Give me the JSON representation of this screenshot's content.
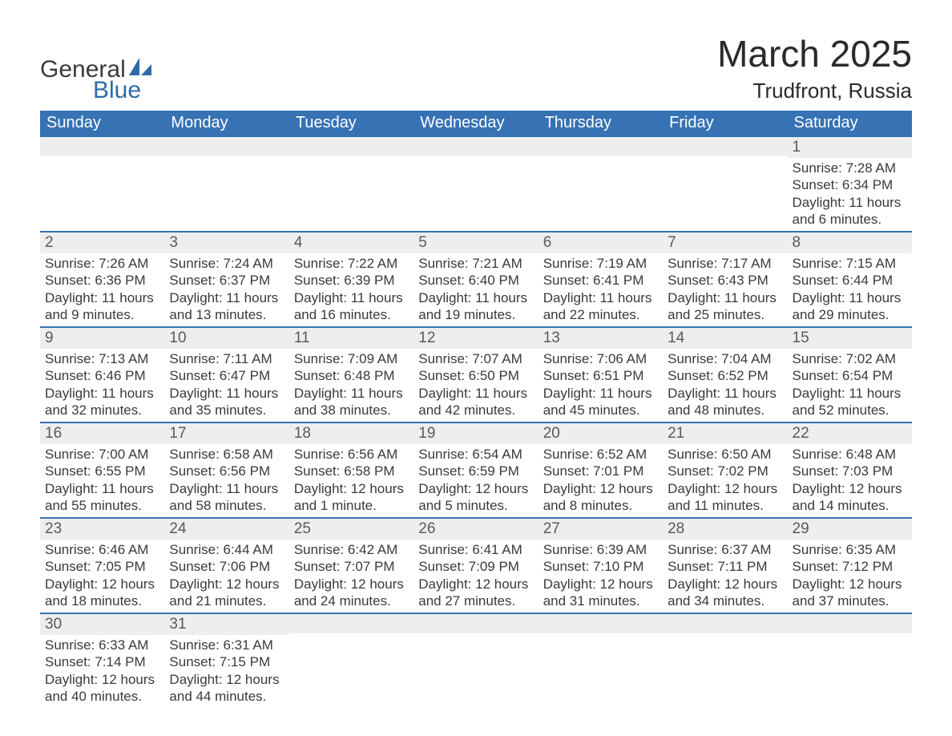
{
  "logo": {
    "general": "General",
    "blue": "Blue",
    "icon_color": "#2f6aa8"
  },
  "title": "March 2025",
  "location": "Trudfront, Russia",
  "colors": {
    "header_bg": "#3672b4",
    "header_text": "#ffffff",
    "daynum_bg": "#eeeeee",
    "daynum_text": "#5a5a5a",
    "body_text": "#3a3a3a",
    "row_border": "#3672b4"
  },
  "columns": [
    "Sunday",
    "Monday",
    "Tuesday",
    "Wednesday",
    "Thursday",
    "Friday",
    "Saturday"
  ],
  "weeks": [
    [
      {
        "n": "",
        "l1": "",
        "l2": "",
        "l3": "",
        "l4": ""
      },
      {
        "n": "",
        "l1": "",
        "l2": "",
        "l3": "",
        "l4": ""
      },
      {
        "n": "",
        "l1": "",
        "l2": "",
        "l3": "",
        "l4": ""
      },
      {
        "n": "",
        "l1": "",
        "l2": "",
        "l3": "",
        "l4": ""
      },
      {
        "n": "",
        "l1": "",
        "l2": "",
        "l3": "",
        "l4": ""
      },
      {
        "n": "",
        "l1": "",
        "l2": "",
        "l3": "",
        "l4": ""
      },
      {
        "n": "1",
        "l1": "Sunrise: 7:28 AM",
        "l2": "Sunset: 6:34 PM",
        "l3": "Daylight: 11 hours",
        "l4": "and 6 minutes."
      }
    ],
    [
      {
        "n": "2",
        "l1": "Sunrise: 7:26 AM",
        "l2": "Sunset: 6:36 PM",
        "l3": "Daylight: 11 hours",
        "l4": "and 9 minutes."
      },
      {
        "n": "3",
        "l1": "Sunrise: 7:24 AM",
        "l2": "Sunset: 6:37 PM",
        "l3": "Daylight: 11 hours",
        "l4": "and 13 minutes."
      },
      {
        "n": "4",
        "l1": "Sunrise: 7:22 AM",
        "l2": "Sunset: 6:39 PM",
        "l3": "Daylight: 11 hours",
        "l4": "and 16 minutes."
      },
      {
        "n": "5",
        "l1": "Sunrise: 7:21 AM",
        "l2": "Sunset: 6:40 PM",
        "l3": "Daylight: 11 hours",
        "l4": "and 19 minutes."
      },
      {
        "n": "6",
        "l1": "Sunrise: 7:19 AM",
        "l2": "Sunset: 6:41 PM",
        "l3": "Daylight: 11 hours",
        "l4": "and 22 minutes."
      },
      {
        "n": "7",
        "l1": "Sunrise: 7:17 AM",
        "l2": "Sunset: 6:43 PM",
        "l3": "Daylight: 11 hours",
        "l4": "and 25 minutes."
      },
      {
        "n": "8",
        "l1": "Sunrise: 7:15 AM",
        "l2": "Sunset: 6:44 PM",
        "l3": "Daylight: 11 hours",
        "l4": "and 29 minutes."
      }
    ],
    [
      {
        "n": "9",
        "l1": "Sunrise: 7:13 AM",
        "l2": "Sunset: 6:46 PM",
        "l3": "Daylight: 11 hours",
        "l4": "and 32 minutes."
      },
      {
        "n": "10",
        "l1": "Sunrise: 7:11 AM",
        "l2": "Sunset: 6:47 PM",
        "l3": "Daylight: 11 hours",
        "l4": "and 35 minutes."
      },
      {
        "n": "11",
        "l1": "Sunrise: 7:09 AM",
        "l2": "Sunset: 6:48 PM",
        "l3": "Daylight: 11 hours",
        "l4": "and 38 minutes."
      },
      {
        "n": "12",
        "l1": "Sunrise: 7:07 AM",
        "l2": "Sunset: 6:50 PM",
        "l3": "Daylight: 11 hours",
        "l4": "and 42 minutes."
      },
      {
        "n": "13",
        "l1": "Sunrise: 7:06 AM",
        "l2": "Sunset: 6:51 PM",
        "l3": "Daylight: 11 hours",
        "l4": "and 45 minutes."
      },
      {
        "n": "14",
        "l1": "Sunrise: 7:04 AM",
        "l2": "Sunset: 6:52 PM",
        "l3": "Daylight: 11 hours",
        "l4": "and 48 minutes."
      },
      {
        "n": "15",
        "l1": "Sunrise: 7:02 AM",
        "l2": "Sunset: 6:54 PM",
        "l3": "Daylight: 11 hours",
        "l4": "and 52 minutes."
      }
    ],
    [
      {
        "n": "16",
        "l1": "Sunrise: 7:00 AM",
        "l2": "Sunset: 6:55 PM",
        "l3": "Daylight: 11 hours",
        "l4": "and 55 minutes."
      },
      {
        "n": "17",
        "l1": "Sunrise: 6:58 AM",
        "l2": "Sunset: 6:56 PM",
        "l3": "Daylight: 11 hours",
        "l4": "and 58 minutes."
      },
      {
        "n": "18",
        "l1": "Sunrise: 6:56 AM",
        "l2": "Sunset: 6:58 PM",
        "l3": "Daylight: 12 hours",
        "l4": "and 1 minute."
      },
      {
        "n": "19",
        "l1": "Sunrise: 6:54 AM",
        "l2": "Sunset: 6:59 PM",
        "l3": "Daylight: 12 hours",
        "l4": "and 5 minutes."
      },
      {
        "n": "20",
        "l1": "Sunrise: 6:52 AM",
        "l2": "Sunset: 7:01 PM",
        "l3": "Daylight: 12 hours",
        "l4": "and 8 minutes."
      },
      {
        "n": "21",
        "l1": "Sunrise: 6:50 AM",
        "l2": "Sunset: 7:02 PM",
        "l3": "Daylight: 12 hours",
        "l4": "and 11 minutes."
      },
      {
        "n": "22",
        "l1": "Sunrise: 6:48 AM",
        "l2": "Sunset: 7:03 PM",
        "l3": "Daylight: 12 hours",
        "l4": "and 14 minutes."
      }
    ],
    [
      {
        "n": "23",
        "l1": "Sunrise: 6:46 AM",
        "l2": "Sunset: 7:05 PM",
        "l3": "Daylight: 12 hours",
        "l4": "and 18 minutes."
      },
      {
        "n": "24",
        "l1": "Sunrise: 6:44 AM",
        "l2": "Sunset: 7:06 PM",
        "l3": "Daylight: 12 hours",
        "l4": "and 21 minutes."
      },
      {
        "n": "25",
        "l1": "Sunrise: 6:42 AM",
        "l2": "Sunset: 7:07 PM",
        "l3": "Daylight: 12 hours",
        "l4": "and 24 minutes."
      },
      {
        "n": "26",
        "l1": "Sunrise: 6:41 AM",
        "l2": "Sunset: 7:09 PM",
        "l3": "Daylight: 12 hours",
        "l4": "and 27 minutes."
      },
      {
        "n": "27",
        "l1": "Sunrise: 6:39 AM",
        "l2": "Sunset: 7:10 PM",
        "l3": "Daylight: 12 hours",
        "l4": "and 31 minutes."
      },
      {
        "n": "28",
        "l1": "Sunrise: 6:37 AM",
        "l2": "Sunset: 7:11 PM",
        "l3": "Daylight: 12 hours",
        "l4": "and 34 minutes."
      },
      {
        "n": "29",
        "l1": "Sunrise: 6:35 AM",
        "l2": "Sunset: 7:12 PM",
        "l3": "Daylight: 12 hours",
        "l4": "and 37 minutes."
      }
    ],
    [
      {
        "n": "30",
        "l1": "Sunrise: 6:33 AM",
        "l2": "Sunset: 7:14 PM",
        "l3": "Daylight: 12 hours",
        "l4": "and 40 minutes."
      },
      {
        "n": "31",
        "l1": "Sunrise: 6:31 AM",
        "l2": "Sunset: 7:15 PM",
        "l3": "Daylight: 12 hours",
        "l4": "and 44 minutes."
      },
      {
        "n": "",
        "l1": "",
        "l2": "",
        "l3": "",
        "l4": ""
      },
      {
        "n": "",
        "l1": "",
        "l2": "",
        "l3": "",
        "l4": ""
      },
      {
        "n": "",
        "l1": "",
        "l2": "",
        "l3": "",
        "l4": ""
      },
      {
        "n": "",
        "l1": "",
        "l2": "",
        "l3": "",
        "l4": ""
      },
      {
        "n": "",
        "l1": "",
        "l2": "",
        "l3": "",
        "l4": ""
      }
    ]
  ]
}
